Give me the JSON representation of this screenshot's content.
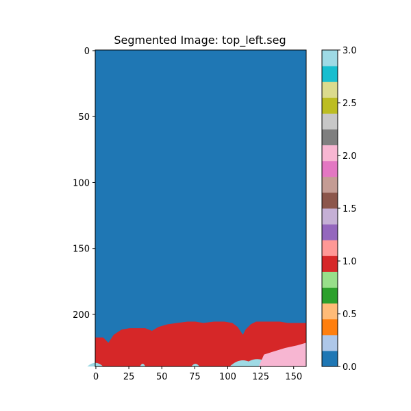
{
  "chart_data": {
    "type": "heatmap",
    "title": "Segmented Image: top_left.seg",
    "image": {
      "rows": 240,
      "cols": 160
    },
    "x_ticks": [
      {
        "value": 0,
        "label": "0"
      },
      {
        "value": 25,
        "label": "25"
      },
      {
        "value": 50,
        "label": "50"
      },
      {
        "value": 75,
        "label": "75"
      },
      {
        "value": 100,
        "label": "100"
      },
      {
        "value": 125,
        "label": "125"
      },
      {
        "value": 150,
        "label": "150"
      }
    ],
    "y_ticks": [
      {
        "value": 0,
        "label": "0"
      },
      {
        "value": 50,
        "label": "50"
      },
      {
        "value": 100,
        "label": "100"
      },
      {
        "value": 150,
        "label": "150"
      },
      {
        "value": 200,
        "label": "200"
      }
    ],
    "colorbar": {
      "colormap": "tab20",
      "range": [
        0.0,
        3.0
      ],
      "colors": [
        "#1f77b4",
        "#aec7e8",
        "#ff7f0e",
        "#ffbb78",
        "#2ca02c",
        "#98df8a",
        "#d62728",
        "#ff9896",
        "#9467bd",
        "#c5b0d5",
        "#8c564b",
        "#c49c94",
        "#e377c2",
        "#f7b6d2",
        "#7f7f7f",
        "#c7c7c7",
        "#bcbd22",
        "#dbdb8d",
        "#17becf",
        "#9edae5"
      ],
      "ticks": [
        {
          "value": 0.0,
          "label": "0.0"
        },
        {
          "value": 0.5,
          "label": "0.5"
        },
        {
          "value": 1.0,
          "label": "1.0"
        },
        {
          "value": 1.5,
          "label": "1.5"
        },
        {
          "value": 2.0,
          "label": "2.0"
        },
        {
          "value": 2.5,
          "label": "2.5"
        },
        {
          "value": 3.0,
          "label": "3.0"
        }
      ]
    },
    "segments": [
      {
        "value": 0,
        "color": "#1f77b4",
        "region": "background"
      },
      {
        "value": 1,
        "color": "#d62728",
        "top_edge": [
          [
            0,
            218
          ],
          [
            6,
            218
          ],
          [
            10,
            222
          ],
          [
            14,
            216
          ],
          [
            20,
            212
          ],
          [
            26,
            211
          ],
          [
            38,
            211
          ],
          [
            43,
            213
          ],
          [
            48,
            210
          ],
          [
            55,
            208
          ],
          [
            62,
            207
          ],
          [
            70,
            206
          ],
          [
            76,
            206
          ],
          [
            82,
            207
          ],
          [
            90,
            206
          ],
          [
            98,
            206
          ],
          [
            104,
            207
          ],
          [
            108,
            210
          ],
          [
            110,
            213
          ],
          [
            112,
            216
          ],
          [
            114,
            212
          ],
          [
            118,
            208
          ],
          [
            122,
            206
          ],
          [
            136,
            206
          ],
          [
            140,
            206
          ],
          [
            146,
            207
          ],
          [
            160,
            207
          ]
        ]
      },
      {
        "value": 3,
        "color": "#9edae5",
        "bottom_strip": [
          [
            0,
            6
          ],
          [
            36,
            2
          ],
          [
            76,
            3
          ],
          [
            112,
            10
          ],
          [
            123,
            12
          ]
        ]
      },
      {
        "value": 2,
        "color": "#f7b6d2",
        "region": "bottom-right",
        "top_edge": [
          [
            124,
            240
          ],
          [
            128,
            231
          ],
          [
            134,
            229
          ],
          [
            144,
            226
          ],
          [
            153,
            224
          ],
          [
            160,
            222
          ]
        ]
      }
    ]
  }
}
